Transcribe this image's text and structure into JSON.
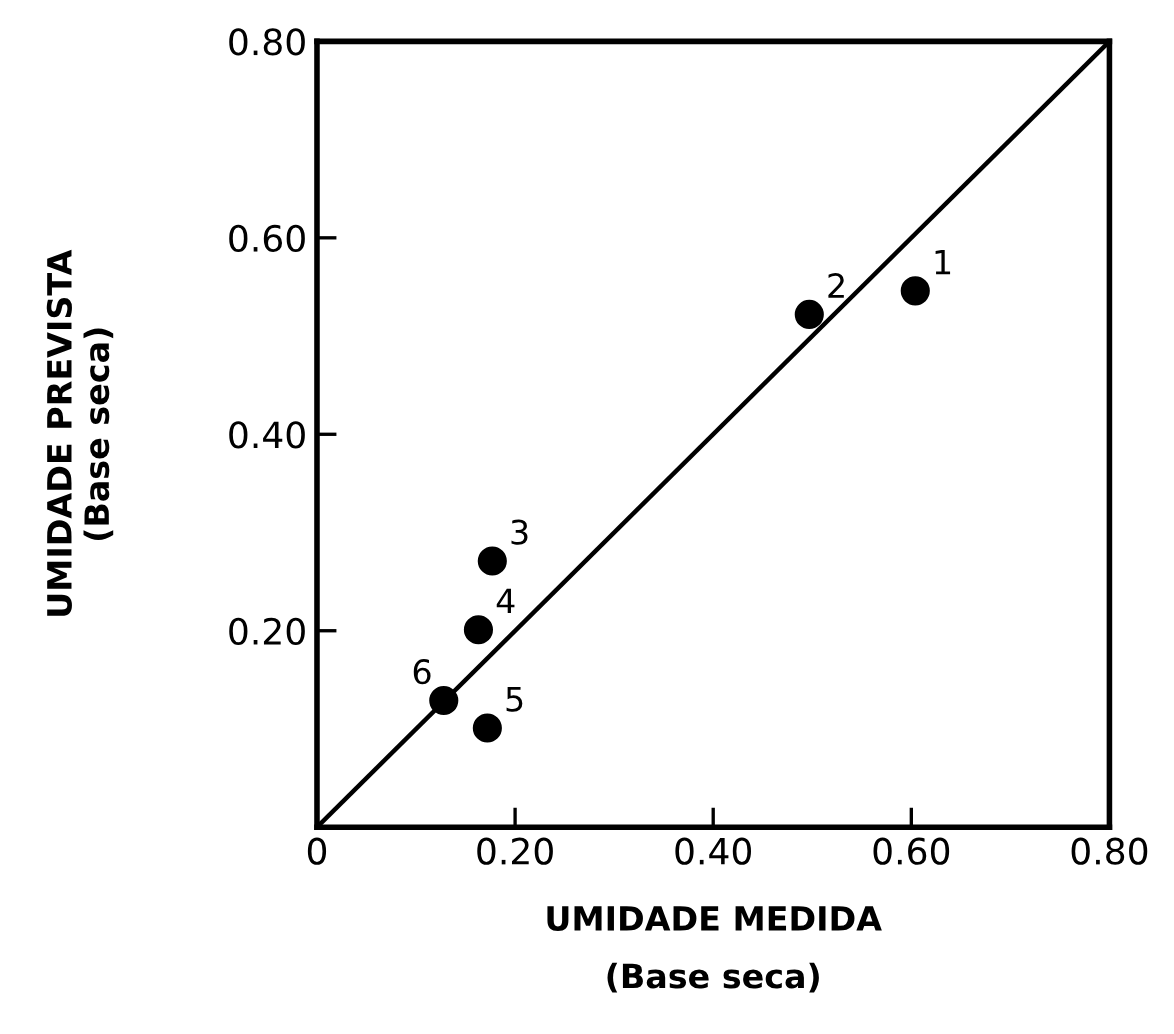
{
  "chart_data": {
    "type": "scatter",
    "xlabel": "UMIDADE MEDIDA\n(Base seca)",
    "ylabel": "UMIDADE PREVISTA\n(Base seca)",
    "series": [
      {
        "color": "#000000",
        "marker": "circle",
        "x": [
          0.604,
          0.497,
          0.177,
          0.163,
          0.172,
          0.128
        ],
        "values": [
          0.546,
          0.522,
          0.271,
          0.201,
          0.101,
          0.129
        ]
      },
      {
        "type": "line",
        "color": "#000000",
        "line_style": "solid",
        "x": [
          0,
          0.8
        ],
        "values": [
          0,
          0.8
        ]
      }
    ],
    "annotations": [
      {
        "text": "1",
        "x": 0.604,
        "y": 0.546
      },
      {
        "text": "2",
        "x": 0.497,
        "y": 0.522
      },
      {
        "text": "3",
        "x": 0.177,
        "y": 0.271
      },
      {
        "text": "4",
        "x": 0.163,
        "y": 0.201
      },
      {
        "text": "5",
        "x": 0.172,
        "y": 0.101
      },
      {
        "text": "6",
        "x": 0.128,
        "y": 0.129
      }
    ],
    "xlim": [
      0,
      0.8
    ],
    "ylim": [
      0,
      0.8
    ],
    "xticks": [
      0,
      {
        "value": 0.2,
        "label": "0.20"
      },
      {
        "value": 0.4,
        "label": "0.40"
      },
      {
        "value": 0.6,
        "label": "0.60"
      },
      {
        "value": 0.8,
        "label": "0.80"
      }
    ],
    "yticks": [
      {
        "value": 0.2,
        "label": "0.20"
      },
      {
        "value": 0.4,
        "label": "0.40"
      },
      {
        "value": 0.6,
        "label": "0.60"
      },
      {
        "value": 0.8,
        "label": "0.80"
      }
    ],
    "grid": false,
    "legend": false
  }
}
